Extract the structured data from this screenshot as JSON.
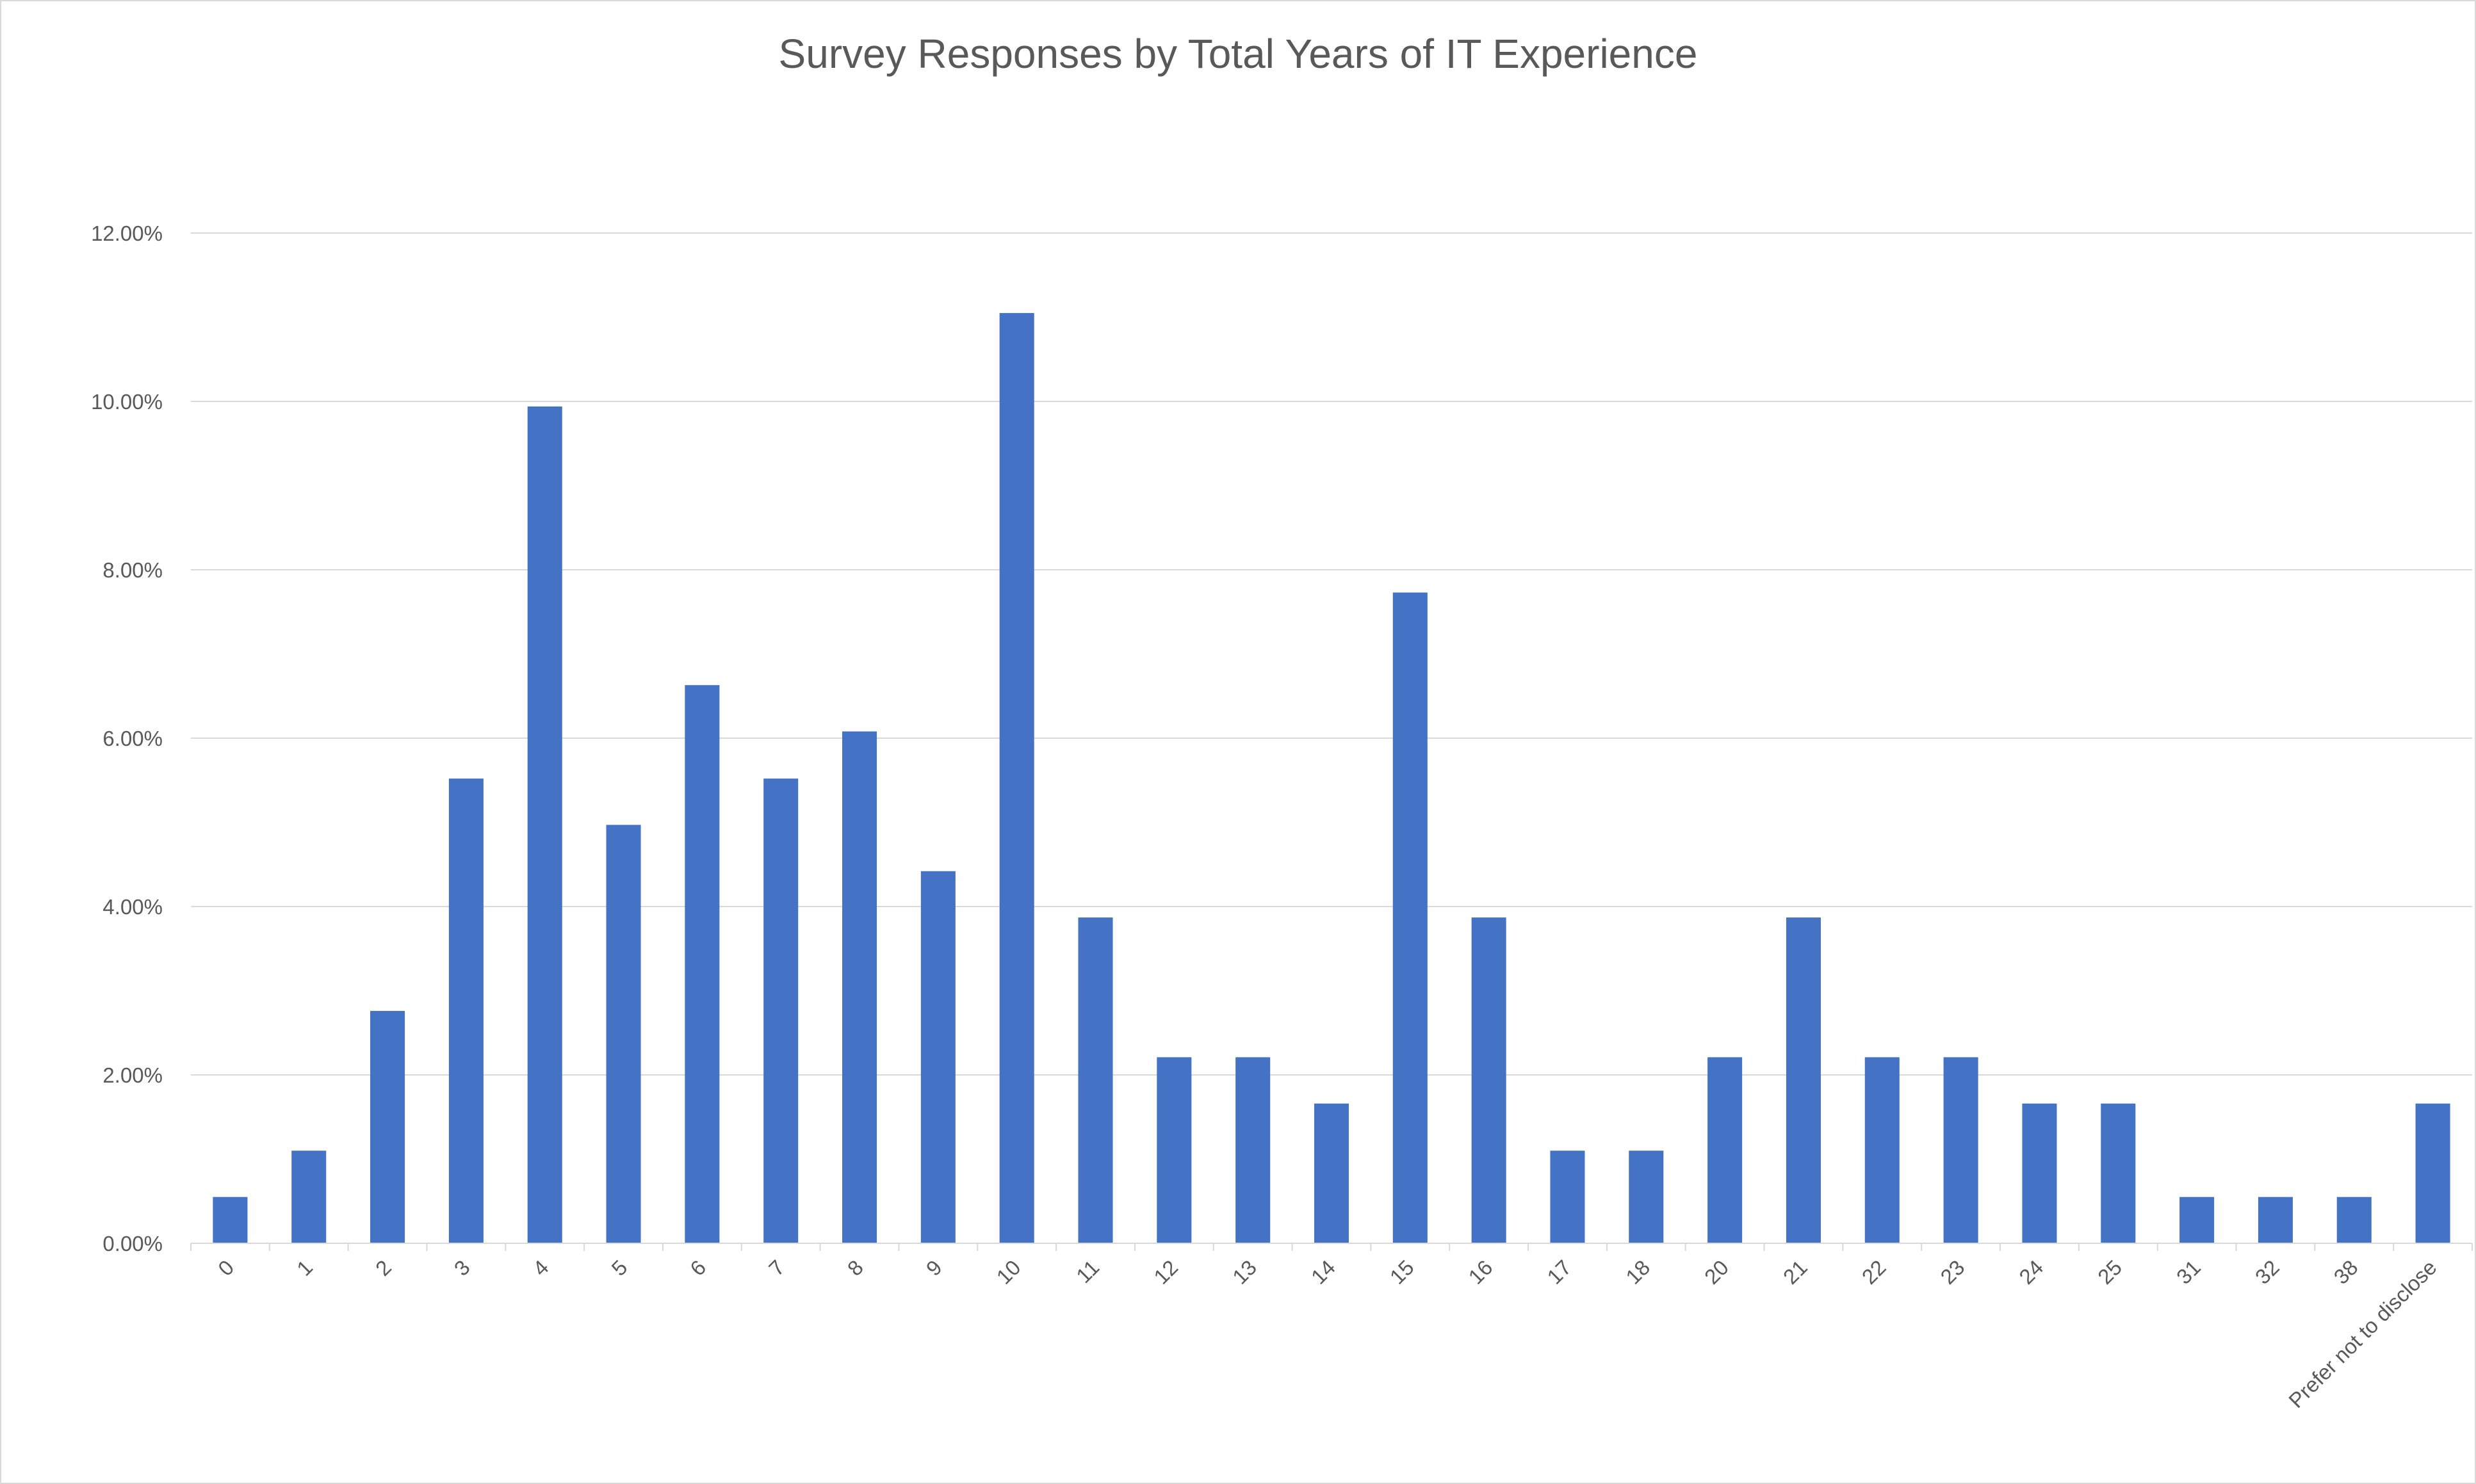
{
  "chart_data": {
    "type": "bar",
    "title": "Survey Responses by Total Years of IT Experience",
    "xlabel": "",
    "ylabel": "",
    "categories": [
      "0",
      "1",
      "2",
      "3",
      "4",
      "5",
      "6",
      "7",
      "8",
      "9",
      "10",
      "11",
      "12",
      "13",
      "14",
      "15",
      "16",
      "17",
      "18",
      "20",
      "21",
      "22",
      "23",
      "24",
      "25",
      "31",
      "32",
      "38",
      "Prefer not to disclose"
    ],
    "values": [
      0.55,
      1.1,
      2.76,
      5.52,
      9.94,
      4.97,
      6.63,
      5.52,
      6.08,
      4.42,
      11.05,
      3.87,
      2.21,
      2.21,
      1.66,
      7.73,
      3.87,
      1.1,
      1.1,
      2.21,
      3.87,
      2.21,
      2.21,
      1.66,
      1.66,
      0.55,
      0.55,
      0.55,
      1.66
    ],
    "ylim": [
      0,
      12
    ],
    "yticks": [
      "0.00%",
      "2.00%",
      "4.00%",
      "6.00%",
      "8.00%",
      "10.00%",
      "12.00%"
    ],
    "grid": true,
    "legend": "none",
    "bar_color": "#4472C4",
    "gridline_color": "#d9d9d9",
    "text_color": "#595959"
  }
}
